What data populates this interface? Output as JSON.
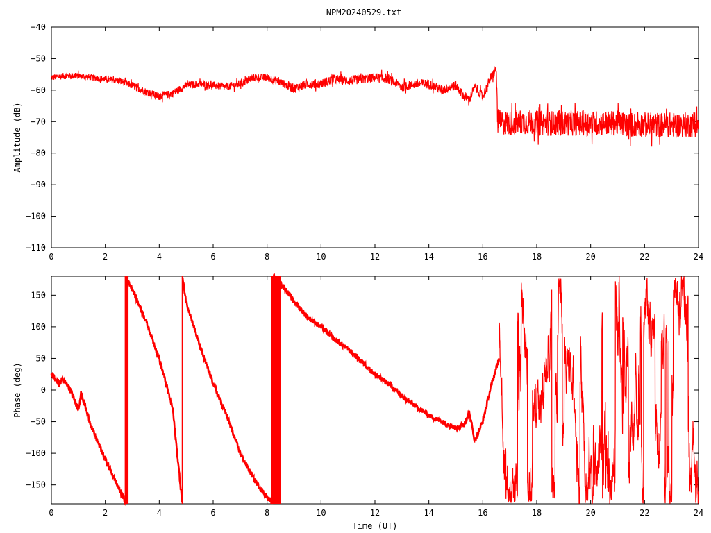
{
  "title": "NPM20240529.txt",
  "colors": {
    "series": "#ff0000",
    "frame": "#000000",
    "background": "#ffffff"
  },
  "chart_data": [
    {
      "type": "line",
      "ylabel": "Amplitude (dB)",
      "xlabel": "",
      "xlim": [
        0,
        24
      ],
      "ylim": [
        -110,
        -40
      ],
      "xticks": [
        0,
        2,
        4,
        6,
        8,
        10,
        12,
        14,
        16,
        18,
        20,
        22,
        24
      ],
      "yticks": [
        -110,
        -100,
        -90,
        -80,
        -70,
        -60,
        -50,
        -40
      ],
      "xtick_labels": [
        "0",
        "2",
        "4",
        "6",
        "8",
        "10",
        "12",
        "14",
        "16",
        "18",
        "20",
        "22",
        "24"
      ],
      "ytick_labels": [
        "−110",
        "−100",
        "−90",
        "−80",
        "−70",
        "−60",
        "−50",
        "−40"
      ],
      "grid": false,
      "series": [
        {
          "x": [
            0,
            0.5,
            1.0,
            1.5,
            2.0,
            2.5,
            3.0,
            3.5,
            4.0,
            4.5,
            5.0,
            5.5,
            6.0,
            6.5,
            7.0,
            7.5,
            8.0,
            8.5,
            9.0,
            9.5,
            10.0,
            10.5,
            11.0,
            11.5,
            12.0,
            12.5,
            13.0,
            13.5,
            14.0,
            14.5,
            15.0,
            15.3,
            15.5,
            15.7,
            16.0,
            16.3,
            16.5,
            16.55,
            17.0,
            17.5,
            18.0,
            18.5,
            19.0,
            19.5,
            20.0,
            20.5,
            21.0,
            21.5,
            22.0,
            22.5,
            23.0,
            23.5,
            24.0
          ],
          "y": [
            -56,
            -55.5,
            -55.5,
            -56,
            -56.5,
            -57,
            -58.5,
            -60.5,
            -62,
            -61,
            -58.5,
            -58,
            -58.5,
            -59,
            -58,
            -56,
            -56,
            -57.5,
            -59.5,
            -58,
            -58,
            -56.5,
            -57,
            -56.5,
            -56,
            -56.5,
            -59,
            -58,
            -58,
            -60,
            -58.5,
            -62,
            -63,
            -59,
            -62,
            -56,
            -53.5,
            -70,
            -70.5,
            -70,
            -70.5,
            -70.5,
            -70.5,
            -70.5,
            -70.5,
            -70.5,
            -70.5,
            -71,
            -71,
            -71,
            -71,
            -71,
            -71
          ],
          "spread": [
            1.0,
            1.0,
            1.0,
            1.0,
            1.0,
            1.0,
            1.2,
            1.2,
            1.2,
            1.2,
            1.2,
            1.2,
            1.2,
            1.2,
            1.2,
            1.2,
            1.2,
            1.2,
            1.5,
            1.5,
            1.5,
            1.5,
            1.5,
            1.5,
            1.5,
            1.5,
            1.5,
            1.5,
            1.5,
            1.5,
            1.5,
            1.5,
            1.5,
            1.5,
            1.5,
            1.5,
            1.5,
            4.0,
            4.0,
            4.0,
            4.0,
            4.0,
            4.0,
            4.0,
            4.0,
            4.0,
            4.0,
            4.0,
            4.0,
            4.0,
            4.0,
            4.0,
            4.0
          ]
        }
      ]
    },
    {
      "type": "line",
      "ylabel": "Phase (deg)",
      "xlabel": "Time (UT)",
      "xlim": [
        0,
        24
      ],
      "ylim": [
        -180,
        180
      ],
      "xticks": [
        0,
        2,
        4,
        6,
        8,
        10,
        12,
        14,
        16,
        18,
        20,
        22,
        24
      ],
      "yticks": [
        -150,
        -100,
        -50,
        0,
        50,
        100,
        150
      ],
      "xtick_labels": [
        "0",
        "2",
        "4",
        "6",
        "8",
        "10",
        "12",
        "14",
        "16",
        "18",
        "20",
        "22",
        "24"
      ],
      "ytick_labels": [
        "−150",
        "−100",
        "−50",
        "0",
        "50",
        "100",
        "150"
      ],
      "grid": false,
      "series": [
        {
          "x": [
            0,
            0.2,
            0.3,
            0.4,
            0.7,
            1.0,
            1.1,
            1.5,
            2.0,
            2.5,
            2.75,
            2.76,
            3.0,
            3.5,
            4.0,
            4.5,
            4.85,
            4.86,
            5.0,
            5.5,
            6.0,
            6.5,
            7.0,
            7.5,
            8.0,
            8.2,
            8.21,
            8.5,
            9.0,
            9.5,
            10.0,
            10.5,
            11.0,
            11.5,
            12.0,
            12.5,
            13.0,
            13.5,
            14.0,
            14.5,
            15.0,
            15.3,
            15.5,
            15.7,
            16.0,
            16.3,
            16.6
          ],
          "y": [
            25,
            15,
            10,
            18,
            0,
            -30,
            -5,
            -60,
            -110,
            -155,
            -178,
            178,
            160,
            110,
            50,
            -30,
            -178,
            178,
            140,
            70,
            10,
            -40,
            -100,
            -140,
            -170,
            -178,
            178,
            170,
            140,
            115,
            100,
            80,
            65,
            45,
            25,
            10,
            -10,
            -25,
            -40,
            -50,
            -60,
            -55,
            -35,
            -80,
            -50,
            5,
            50
          ]
        }
      ],
      "wrap_bands": [
        {
          "x0": 2.72,
          "x1": 2.86
        },
        {
          "x0": 8.15,
          "x1": 8.5
        }
      ],
      "noise_region": {
        "x0": 16.6,
        "x1": 24.0,
        "ymin": -180,
        "ymax": 180
      }
    }
  ]
}
